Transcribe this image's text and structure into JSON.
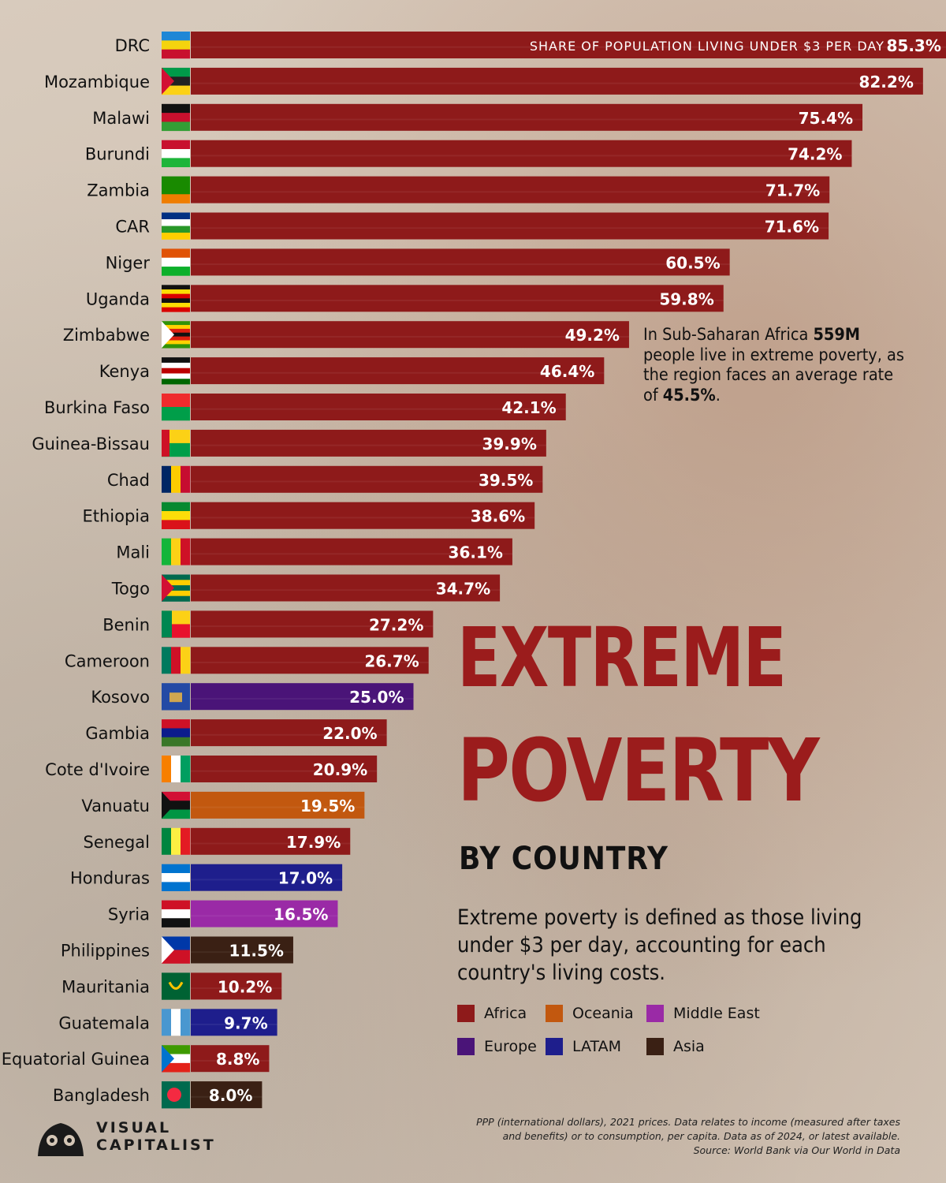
{
  "headline": {
    "line1": "EXTREME",
    "line2": "POVERTY",
    "subtitle": "BY COUNTRY"
  },
  "definition": "Extreme poverty is defined as those living under $3 per day, accounting for each country's living costs.",
  "callout": {
    "pre": "In Sub-Saharan Africa ",
    "highlight1": "559M",
    "mid": " people live in extreme poverty, as the region faces an average rate of ",
    "highlight2": "45.5%",
    "post": "."
  },
  "legend": {
    "items": [
      {
        "label": "Africa",
        "color": "#8e1a1a"
      },
      {
        "label": "Oceania",
        "color": "#c2580f"
      },
      {
        "label": "Middle East",
        "color": "#9a2aa6"
      },
      {
        "label": "Europe",
        "color": "#4a1478"
      },
      {
        "label": "LATAM",
        "color": "#1e1e8c"
      },
      {
        "label": "Asia",
        "color": "#3a2014"
      }
    ]
  },
  "source": {
    "line1": "PPP (international dollars), 2021 prices. Data relates to income (measured after taxes",
    "line2": "and benefits) or to consumption, per capita. Data as of 2024, or latest available.",
    "line3": "Source: World Bank via Our World in Data"
  },
  "logo": {
    "line1": "VISUAL",
    "line2": "CAPITALIST"
  },
  "chart_data": {
    "type": "bar",
    "orientation": "horizontal",
    "series_label": "SHARE OF POPULATION LIVING UNDER $3 PER DAY",
    "xlim": [
      0,
      100
    ],
    "categories": [
      "DRC",
      "Mozambique",
      "Malawi",
      "Burundi",
      "Zambia",
      "CAR",
      "Niger",
      "Uganda",
      "Zimbabwe",
      "Kenya",
      "Burkina Faso",
      "Guinea-Bissau",
      "Chad",
      "Ethiopia",
      "Mali",
      "Togo",
      "Benin",
      "Cameroon",
      "Kosovo",
      "Gambia",
      "Cote d'Ivoire",
      "Vanuatu",
      "Senegal",
      "Honduras",
      "Syria",
      "Philippines",
      "Mauritania",
      "Guatemala",
      "Equatorial Guinea",
      "Bangladesh"
    ],
    "values": [
      85.3,
      82.2,
      75.4,
      74.2,
      71.7,
      71.6,
      60.5,
      59.8,
      49.2,
      46.4,
      42.1,
      39.9,
      39.5,
      38.6,
      36.1,
      34.7,
      27.2,
      26.7,
      25.0,
      22.0,
      20.9,
      19.5,
      17.9,
      17.0,
      16.5,
      11.5,
      10.2,
      9.7,
      8.8,
      8.0
    ],
    "labels": [
      "85.3%",
      "82.2%",
      "75.4%",
      "74.2%",
      "71.7%",
      "71.6%",
      "60.5%",
      "59.8%",
      "49.2%",
      "46.4%",
      "42.1%",
      "39.9%",
      "39.5%",
      "38.6%",
      "36.1%",
      "34.7%",
      "27.2%",
      "26.7%",
      "25.0%",
      "22.0%",
      "20.9%",
      "19.5%",
      "17.9%",
      "17.0%",
      "16.5%",
      "11.5%",
      "10.2%",
      "9.7%",
      "8.8%",
      "8.0%"
    ],
    "regions": [
      "Africa",
      "Africa",
      "Africa",
      "Africa",
      "Africa",
      "Africa",
      "Africa",
      "Africa",
      "Africa",
      "Africa",
      "Africa",
      "Africa",
      "Africa",
      "Africa",
      "Africa",
      "Africa",
      "Africa",
      "Africa",
      "Europe",
      "Africa",
      "Africa",
      "Oceania",
      "Africa",
      "LATAM",
      "Middle East",
      "Asia",
      "Africa",
      "LATAM",
      "Africa",
      "Asia"
    ],
    "region_colors": {
      "Africa": "#8e1a1a",
      "Oceania": "#c2580f",
      "Middle East": "#9a2aa6",
      "Europe": "#4a1478",
      "LATAM": "#1e1e8c",
      "Asia": "#3a2014"
    }
  }
}
